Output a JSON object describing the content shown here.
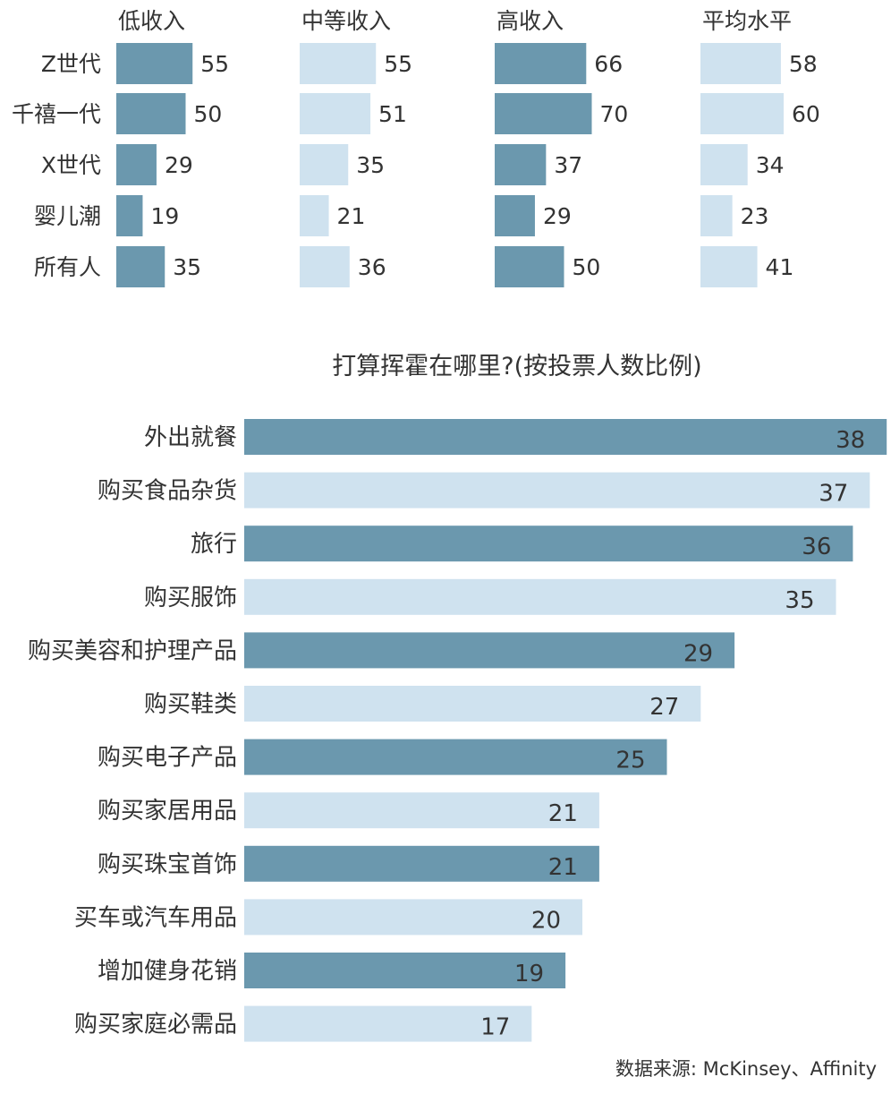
{
  "colors": {
    "dark": "#6b98ae",
    "light": "#cfe2ef",
    "text": "#333333",
    "text_on_dark": "#ffffff"
  },
  "chart_data": [
    {
      "type": "bar",
      "orientation": "horizontal",
      "categories": [
        "Z世代",
        "千禧一代",
        "X世代",
        "婴儿潮",
        "所有人"
      ],
      "series": [
        {
          "name": "低收入",
          "values": [
            55,
            50,
            29,
            19,
            35
          ],
          "color": "dark"
        },
        {
          "name": "中等收入",
          "values": [
            55,
            51,
            35,
            21,
            36
          ],
          "color": "light"
        },
        {
          "name": "高收入",
          "values": [
            66,
            70,
            37,
            29,
            50
          ],
          "color": "dark"
        },
        {
          "name": "平均水平",
          "values": [
            58,
            60,
            34,
            23,
            41
          ],
          "color": "light"
        }
      ],
      "layout": "small-multiples",
      "data_labels": "outside-end"
    },
    {
      "type": "bar",
      "orientation": "horizontal",
      "title": "打算挥霍在哪里?(按投票人数比例)",
      "categories": [
        "外出就餐",
        "购买食品杂货",
        "旅行",
        "购买服饰",
        "购买美容和护理产品",
        "购买鞋类",
        "购买电子产品",
        "购买家居用品",
        "购买珠宝首饰",
        "买车或汽车用品",
        "增加健身花销",
        "购买家庭必需品"
      ],
      "values": [
        38,
        37,
        36,
        35,
        29,
        27,
        25,
        21,
        21,
        20,
        19,
        17
      ],
      "bar_colors": [
        "dark",
        "light",
        "dark",
        "light",
        "dark",
        "light",
        "dark",
        "light",
        "dark",
        "light",
        "dark",
        "light"
      ],
      "data_labels": "inside-end"
    }
  ],
  "source_note": "数据来源: McKinsey、Affinity"
}
